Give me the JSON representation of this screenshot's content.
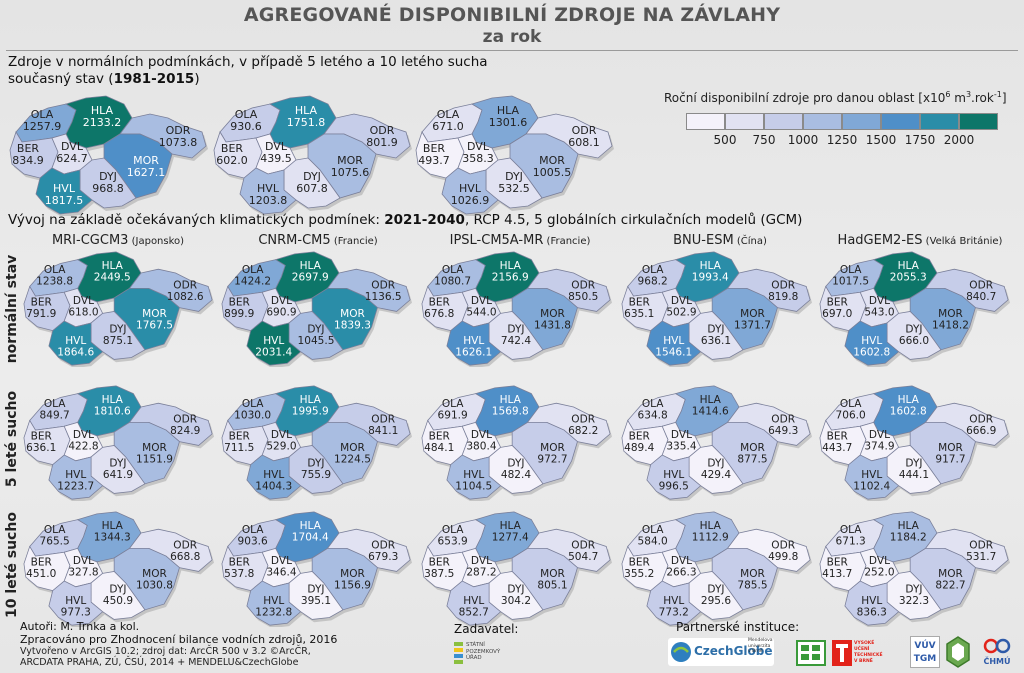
{
  "title": "AGREGOVANÉ DISPONIBILNÍ ZDROJE NA ZÁVLAHY",
  "subtitle": "za rok",
  "section1": {
    "line1": "Zdroje v normálních podmínkách, v případě 5 letého a 10 letého sucha",
    "line2_pre": "současný stav (",
    "line2_bold": "1981-2015",
    "line2_post": ")"
  },
  "legend": {
    "title_pre": "Roční disponibilní zdroje pro danou oblast [x10",
    "title_sup1": "6",
    "title_mid": " m",
    "title_sup2": "3",
    "title_post": ".rok",
    "title_sup3": "-1",
    "title_end": "]",
    "ticks": [
      "500",
      "750",
      "1000",
      "1250",
      "1500",
      "1750",
      "2000"
    ],
    "colors": [
      "#f4f2fa",
      "#e1e2f2",
      "#c6cde9",
      "#a9bde1",
      "#80a8d6",
      "#4f8fc8",
      "#2a8da8",
      "#0d7669"
    ]
  },
  "section2": {
    "pre": "Vývoj na základě očekávaných klimatických podmínek: ",
    "bold": "2021-2040",
    "post": ", RCP 4.5, 5 globálních cirkulačních modelů (GCM)"
  },
  "models": [
    {
      "name": "MRI-CGCM3",
      "country": "(Japonsko)"
    },
    {
      "name": "CNRM-CM5",
      "country": "(Francie)"
    },
    {
      "name": "IPSL-CM5A-MR",
      "country": "(Francie)"
    },
    {
      "name": "BNU-ESM",
      "country": "(Čína)"
    },
    {
      "name": "HadGEM2-ES",
      "country": "(Velká Británie)"
    }
  ],
  "row_labels": [
    "normální stav",
    "5 leté sucho",
    "10 leté sucho"
  ],
  "region_codes": [
    "OLA",
    "HLA",
    "BER",
    "DVL",
    "ODR",
    "MOR",
    "DYJ",
    "HVL"
  ],
  "maps": {
    "current": [
      {
        "OLA": "1257.9",
        "HLA": "2133.2",
        "BER": "834.9",
        "DVL": "624.7",
        "ODR": "1073.8",
        "MOR": "1627.1",
        "DYJ": "968.8",
        "HVL": "1817.5"
      },
      {
        "OLA": "930.6",
        "HLA": "1751.8",
        "BER": "602.0",
        "DVL": "439.5",
        "ODR": "801.9",
        "MOR": "1075.6",
        "DYJ": "607.8",
        "HVL": "1203.8"
      },
      {
        "OLA": "671.0",
        "HLA": "1301.6",
        "BER": "493.7",
        "DVL": "358.3",
        "ODR": "608.1",
        "MOR": "1005.5",
        "DYJ": "532.5",
        "HVL": "1026.9"
      }
    ],
    "future": [
      [
        {
          "OLA": "1238.8",
          "HLA": "2449.5",
          "BER": "791.9",
          "DVL": "618.0",
          "ODR": "1082.6",
          "MOR": "1767.5",
          "DYJ": "875.1",
          "HVL": "1864.6"
        },
        {
          "OLA": "1424.2",
          "HLA": "2697.9",
          "BER": "899.9",
          "DVL": "690.9",
          "ODR": "1136.5",
          "MOR": "1839.3",
          "DYJ": "1045.5",
          "HVL": "2031.4"
        },
        {
          "OLA": "1080.7",
          "HLA": "2156.9",
          "BER": "676.8",
          "DVL": "544.0",
          "ODR": "850.5",
          "MOR": "1431.8",
          "DYJ": "742.4",
          "HVL": "1626.1"
        },
        {
          "OLA": "968.2",
          "HLA": "1993.4",
          "BER": "635.1",
          "DVL": "502.9",
          "ODR": "819.8",
          "MOR": "1371.7",
          "DYJ": "636.1",
          "HVL": "1546.1"
        },
        {
          "OLA": "1017.5",
          "HLA": "2055.3",
          "BER": "697.0",
          "DVL": "543.0",
          "ODR": "840.7",
          "MOR": "1418.2",
          "DYJ": "666.0",
          "HVL": "1602.8"
        }
      ],
      [
        {
          "OLA": "849.7",
          "HLA": "1810.6",
          "BER": "636.1",
          "DVL": "422.8",
          "ODR": "824.9",
          "MOR": "1151.9",
          "DYJ": "641.9",
          "HVL": "1223.7"
        },
        {
          "OLA": "1030.0",
          "HLA": "1995.9",
          "BER": "711.5",
          "DVL": "529.0",
          "ODR": "841.1",
          "MOR": "1224.5",
          "DYJ": "755.9",
          "HVL": "1404.3"
        },
        {
          "OLA": "691.9",
          "HLA": "1569.8",
          "BER": "484.1",
          "DVL": "380.4",
          "ODR": "682.2",
          "MOR": "972.7",
          "DYJ": "482.4",
          "HVL": "1104.5"
        },
        {
          "OLA": "634.8",
          "HLA": "1414.6",
          "BER": "489.4",
          "DVL": "335.4",
          "ODR": "649.3",
          "MOR": "877.5",
          "DYJ": "429.4",
          "HVL": "996.5"
        },
        {
          "OLA": "706.0",
          "HLA": "1602.8",
          "BER": "443.7",
          "DVL": "374.9",
          "ODR": "666.9",
          "MOR": "917.7",
          "DYJ": "444.1",
          "HVL": "1102.4"
        }
      ],
      [
        {
          "OLA": "765.5",
          "HLA": "1344.3",
          "BER": "451.0",
          "DVL": "327.8",
          "ODR": "668.8",
          "MOR": "1030.8",
          "DYJ": "450.9",
          "HVL": "977.3"
        },
        {
          "OLA": "903.6",
          "HLA": "1704.4",
          "BER": "537.8",
          "DVL": "346.4",
          "ODR": "679.3",
          "MOR": "1156.9",
          "DYJ": "395.1",
          "HVL": "1232.8"
        },
        {
          "OLA": "653.9",
          "HLA": "1277.4",
          "BER": "387.5",
          "DVL": "287.2",
          "ODR": "504.7",
          "MOR": "805.1",
          "DYJ": "304.2",
          "HVL": "852.7"
        },
        {
          "OLA": "584.0",
          "HLA": "1112.9",
          "BER": "355.2",
          "DVL": "266.3",
          "ODR": "499.8",
          "MOR": "785.5",
          "DYJ": "295.6",
          "HVL": "773.2"
        },
        {
          "OLA": "671.3",
          "HLA": "1184.2",
          "BER": "413.7",
          "DVL": "252.0",
          "ODR": "531.7",
          "MOR": "822.7",
          "DYJ": "322.3",
          "HVL": "836.3"
        }
      ]
    ]
  },
  "footer": {
    "authors": "Autoři: M. Trnka a kol.",
    "prepared": "Zpracováno pro Zhodnocení bilance vodních zdrojů, 2016",
    "created": "Vytvořeno v ArcGIS 10.2; zdroj dat: ArcČR 500 v 3.2 ©ArcČR,",
    "created2": "ARCDATA PRAHA, ZÚ, ČSÚ, 2014 + MENDELU&CzechGlobe",
    "client_label": "Zadavatel:",
    "client_logo": "STÁTNÍ POZEMKOVÝ ÚŘAD",
    "partners_label": "Partnerské instituce:",
    "partner_czechglobe": "CzechGlobe",
    "partner_mendelu": "Mendelova univerzita v Brně",
    "partner_vut": "VYSOKÉ UČENÍ TECHNICKÉ V BRNĚ",
    "partner_vuv": "VÚV TGM",
    "partner_chmu": "ČHMÚ"
  }
}
